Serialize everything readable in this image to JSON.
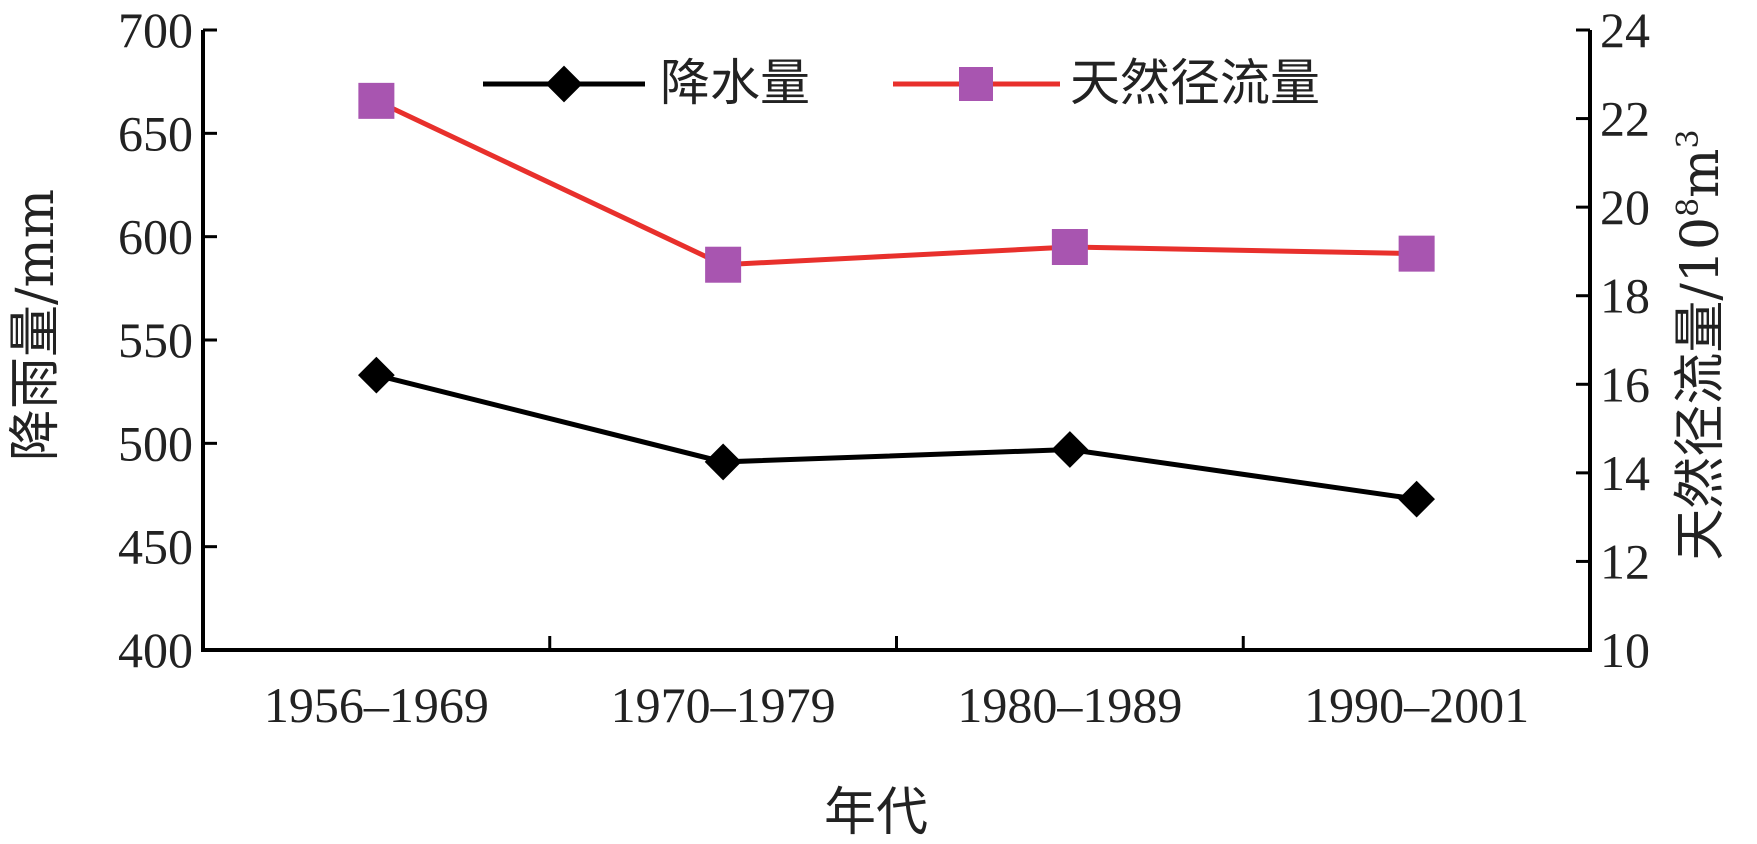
{
  "chart_data": {
    "type": "line",
    "categories": [
      "1956–1969",
      "1970–1979",
      "1980–1989",
      "1990–2001"
    ],
    "xlabel": "年代",
    "y_left": {
      "label": "降雨量/mm",
      "lim": [
        400,
        700
      ],
      "ticks": [
        400,
        450,
        500,
        550,
        600,
        650,
        700
      ]
    },
    "y_right": {
      "label_main": "天然径流量/10",
      "label_sup1": "8",
      "label_mid": "m",
      "label_sup2": "3",
      "lim": [
        10,
        24
      ],
      "ticks": [
        10,
        12,
        14,
        16,
        18,
        20,
        22,
        24
      ]
    },
    "series": [
      {
        "name": "降水量",
        "axis": "left",
        "color": "#000000",
        "marker": "diamond",
        "values": [
          533,
          491,
          497,
          473
        ]
      },
      {
        "name": "天然径流量",
        "axis": "right",
        "color": "#e8302c",
        "marker_color": "#a855b0",
        "marker": "square",
        "values": [
          22.4,
          18.7,
          19.1,
          18.95
        ]
      }
    ],
    "legend_position": "top"
  }
}
